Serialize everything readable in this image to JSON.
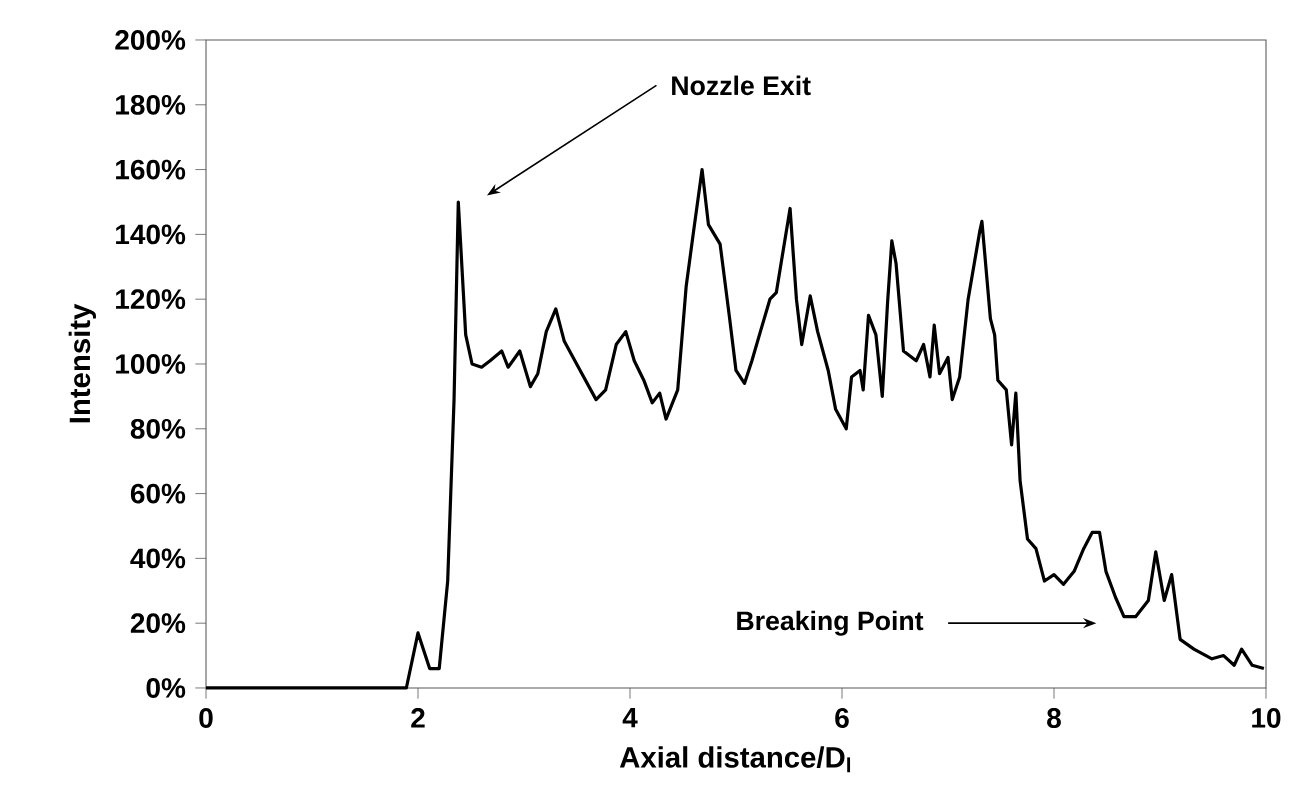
{
  "chart_data": {
    "type": "line",
    "xlabel": "Axial distance/D$_{l}$",
    "ylabel": "Intensity",
    "xlim": [
      0,
      10
    ],
    "ylim": [
      0,
      200
    ],
    "xticks": [
      0,
      2,
      4,
      6,
      8,
      10
    ],
    "yticks": [
      {
        "value": 0,
        "label": "0%"
      },
      {
        "value": 20,
        "label": "20%"
      },
      {
        "value": 40,
        "label": "40%"
      },
      {
        "value": 60,
        "label": "60%"
      },
      {
        "value": 80,
        "label": "80%"
      },
      {
        "value": 100,
        "label": "100%"
      },
      {
        "value": 120,
        "label": "120%"
      },
      {
        "value": 140,
        "label": "140%"
      },
      {
        "value": 160,
        "label": "160%"
      },
      {
        "value": 180,
        "label": "180%"
      },
      {
        "value": 200,
        "label": "200%"
      }
    ],
    "marker": "none",
    "line_style": "solid",
    "annotations": [
      "Nozzle Exit",
      "Breaking Point"
    ],
    "series": [
      {
        "color": "#000000",
        "x": [
          0,
          1.89,
          2.0,
          2.11,
          2.2,
          2.28,
          2.34,
          2.38,
          2.45,
          2.51,
          2.6,
          2.68,
          2.79,
          2.85,
          2.96,
          3.06,
          3.13,
          3.21,
          3.3,
          3.38,
          3.53,
          3.68,
          3.77,
          3.87,
          3.96,
          4.04,
          4.13,
          4.21,
          4.28,
          4.34,
          4.45,
          4.53,
          4.6,
          4.68,
          4.74,
          4.85,
          4.94,
          5.0,
          5.08,
          5.15,
          5.23,
          5.32,
          5.38,
          5.43,
          5.51,
          5.57,
          5.62,
          5.7,
          5.77,
          5.87,
          5.94,
          6.04,
          6.09,
          6.17,
          6.2,
          6.25,
          6.32,
          6.38,
          6.43,
          6.47,
          6.51,
          6.58,
          6.7,
          6.77,
          6.83,
          6.87,
          6.92,
          7.0,
          7.04,
          7.11,
          7.19,
          7.3,
          7.32,
          7.4,
          7.44,
          7.47,
          7.55,
          7.6,
          7.64,
          7.68,
          7.75,
          7.83,
          7.91,
          8.0,
          8.09,
          8.19,
          8.28,
          8.36,
          8.43,
          8.49,
          8.58,
          8.66,
          8.77,
          8.89,
          8.96,
          9.04,
          9.11,
          9.19,
          9.32,
          9.49,
          9.6,
          9.7,
          9.77,
          9.87,
          9.98
        ],
        "values": [
          0,
          0,
          17,
          6,
          6,
          33,
          89,
          150,
          109,
          100,
          99,
          101,
          104,
          99,
          104,
          93,
          97,
          110,
          117,
          107,
          98,
          89,
          92,
          106,
          110,
          101,
          95,
          88,
          91,
          83,
          92,
          124,
          141,
          160,
          143,
          137,
          114,
          98,
          94,
          101,
          110,
          120,
          122,
          132,
          148,
          120,
          106,
          121,
          110,
          98,
          86,
          80,
          96,
          98,
          92,
          115,
          109,
          90,
          119,
          138,
          131,
          104,
          101,
          106,
          96,
          112,
          97,
          102,
          89,
          96,
          120,
          141,
          144,
          114,
          109,
          95,
          92,
          75,
          91,
          64,
          46,
          43,
          33,
          35,
          32,
          36,
          43,
          48,
          48,
          36,
          28,
          22,
          22,
          27,
          42,
          27,
          35,
          15,
          12,
          9,
          10,
          7,
          12,
          7,
          6
        ]
      }
    ]
  }
}
